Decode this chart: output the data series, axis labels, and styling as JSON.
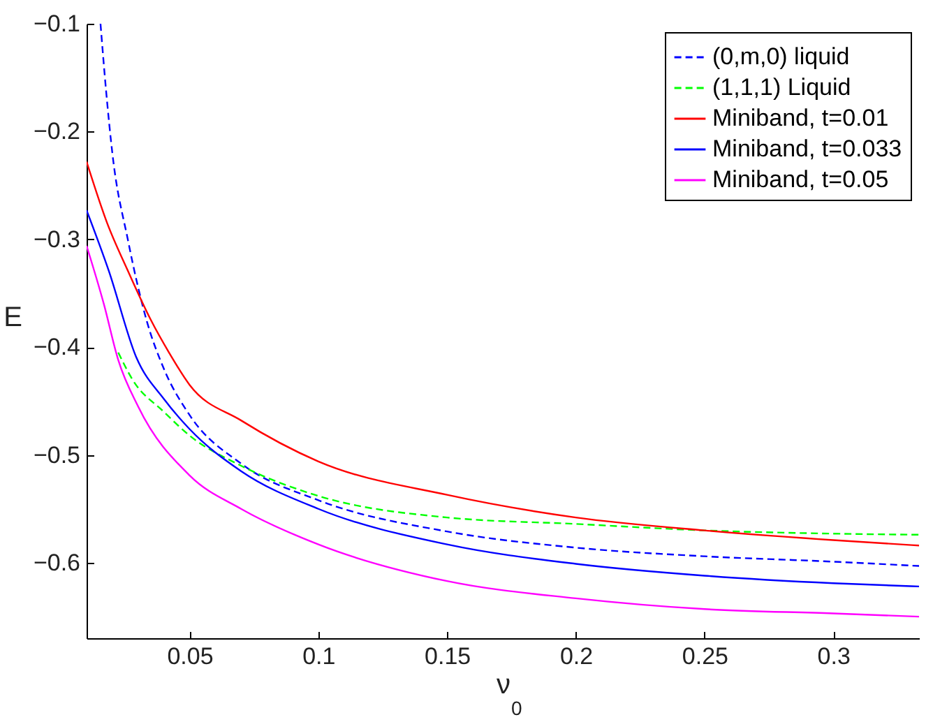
{
  "chart_data": {
    "type": "line",
    "xlabel": "ν$_{0}$",
    "ylabel": "E",
    "xlim": [
      0.01,
      0.3333
    ],
    "ylim": [
      -0.67,
      -0.1
    ],
    "xticks": [
      0.05,
      0.1,
      0.15,
      0.2,
      0.25,
      0.3
    ],
    "yticks": [
      -0.6,
      -0.5,
      -0.4,
      -0.3,
      -0.2,
      -0.1
    ],
    "legend": "top right",
    "grid": false,
    "series": [
      {
        "name": "(0,m,0) liquid",
        "color": "#0000ff",
        "line_style": "dashed",
        "x": [
          0.0154,
          0.0176,
          0.02,
          0.026,
          0.0334,
          0.04,
          0.05,
          0.07,
          0.1,
          0.15,
          0.2,
          0.25,
          0.3,
          0.3333
        ],
        "values": [
          -0.1,
          -0.163,
          -0.22,
          -0.3,
          -0.376,
          -0.42,
          -0.463,
          -0.508,
          -0.542,
          -0.571,
          -0.586,
          -0.594,
          -0.599,
          -0.603
        ]
      },
      {
        "name": "(1,1,1) Liquid",
        "color": "#00ff00",
        "line_style": "dashed",
        "x": [
          0.0223,
          0.0278,
          0.04,
          0.05,
          0.07,
          0.1,
          0.15,
          0.2,
          0.25,
          0.3,
          0.3333
        ],
        "values": [
          -0.405,
          -0.43,
          -0.46,
          -0.482,
          -0.51,
          -0.538,
          -0.558,
          -0.564,
          -0.57,
          -0.573,
          -0.574
        ]
      },
      {
        "name": "Miniband, t=0.01",
        "color": "#ff0000",
        "line_style": "solid",
        "x": [
          0.01,
          0.018,
          0.026,
          0.035,
          0.042,
          0.05,
          0.07,
          0.1,
          0.15,
          0.2,
          0.25,
          0.3,
          0.3333
        ],
        "values": [
          -0.228,
          -0.285,
          -0.329,
          -0.375,
          -0.405,
          -0.435,
          -0.468,
          -0.506,
          -0.537,
          -0.558,
          -0.57,
          -0.579,
          -0.584
        ]
      },
      {
        "name": "Miniband, t=0.033",
        "color": "#0000ff",
        "line_style": "solid",
        "x": [
          0.01,
          0.0186,
          0.0294,
          0.04,
          0.05,
          0.07,
          0.1,
          0.15,
          0.2,
          0.25,
          0.3,
          0.3333
        ],
        "values": [
          -0.273,
          -0.329,
          -0.41,
          -0.448,
          -0.476,
          -0.515,
          -0.55,
          -0.583,
          -0.601,
          -0.612,
          -0.619,
          -0.622
        ]
      },
      {
        "name": "Miniband, t=0.05",
        "color": "#ff00ff",
        "line_style": "solid",
        "x": [
          0.01,
          0.0167,
          0.0223,
          0.03,
          0.05,
          0.07,
          0.1,
          0.15,
          0.2,
          0.25,
          0.3,
          0.3333
        ],
        "values": [
          -0.306,
          -0.36,
          -0.412,
          -0.455,
          -0.519,
          -0.55,
          -0.583,
          -0.617,
          -0.633,
          -0.643,
          -0.647,
          -0.65
        ]
      }
    ]
  }
}
